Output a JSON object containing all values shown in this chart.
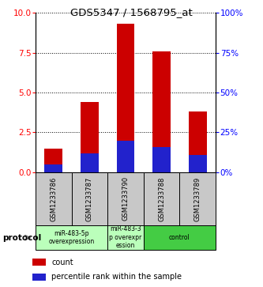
{
  "title": "GDS5347 / 1568795_at",
  "samples": [
    "GSM1233786",
    "GSM1233787",
    "GSM1233790",
    "GSM1233788",
    "GSM1233789"
  ],
  "red_values": [
    1.5,
    4.4,
    9.3,
    7.6,
    3.8
  ],
  "blue_values": [
    0.5,
    1.2,
    2.0,
    1.6,
    1.1
  ],
  "ylim_left": [
    0,
    10
  ],
  "ylim_right": [
    0,
    100
  ],
  "yticks_left": [
    0,
    2.5,
    5,
    7.5,
    10
  ],
  "yticks_right": [
    0,
    25,
    50,
    75,
    100
  ],
  "proto_groups": [
    {
      "start": 0,
      "end": 1,
      "label": "miR-483-5p\noverexpression",
      "color": "#bbffbb"
    },
    {
      "start": 2,
      "end": 2,
      "label": "miR-483-3\np overexpr\nession",
      "color": "#bbffbb"
    },
    {
      "start": 3,
      "end": 4,
      "label": "control",
      "color": "#44cc44"
    }
  ],
  "protocol_label": "protocol",
  "legend_red": "count",
  "legend_blue": "percentile rank within the sample",
  "bar_color_red": "#cc0000",
  "bar_color_blue": "#2222cc",
  "sample_box_color": "#c8c8c8",
  "bar_width": 0.5
}
